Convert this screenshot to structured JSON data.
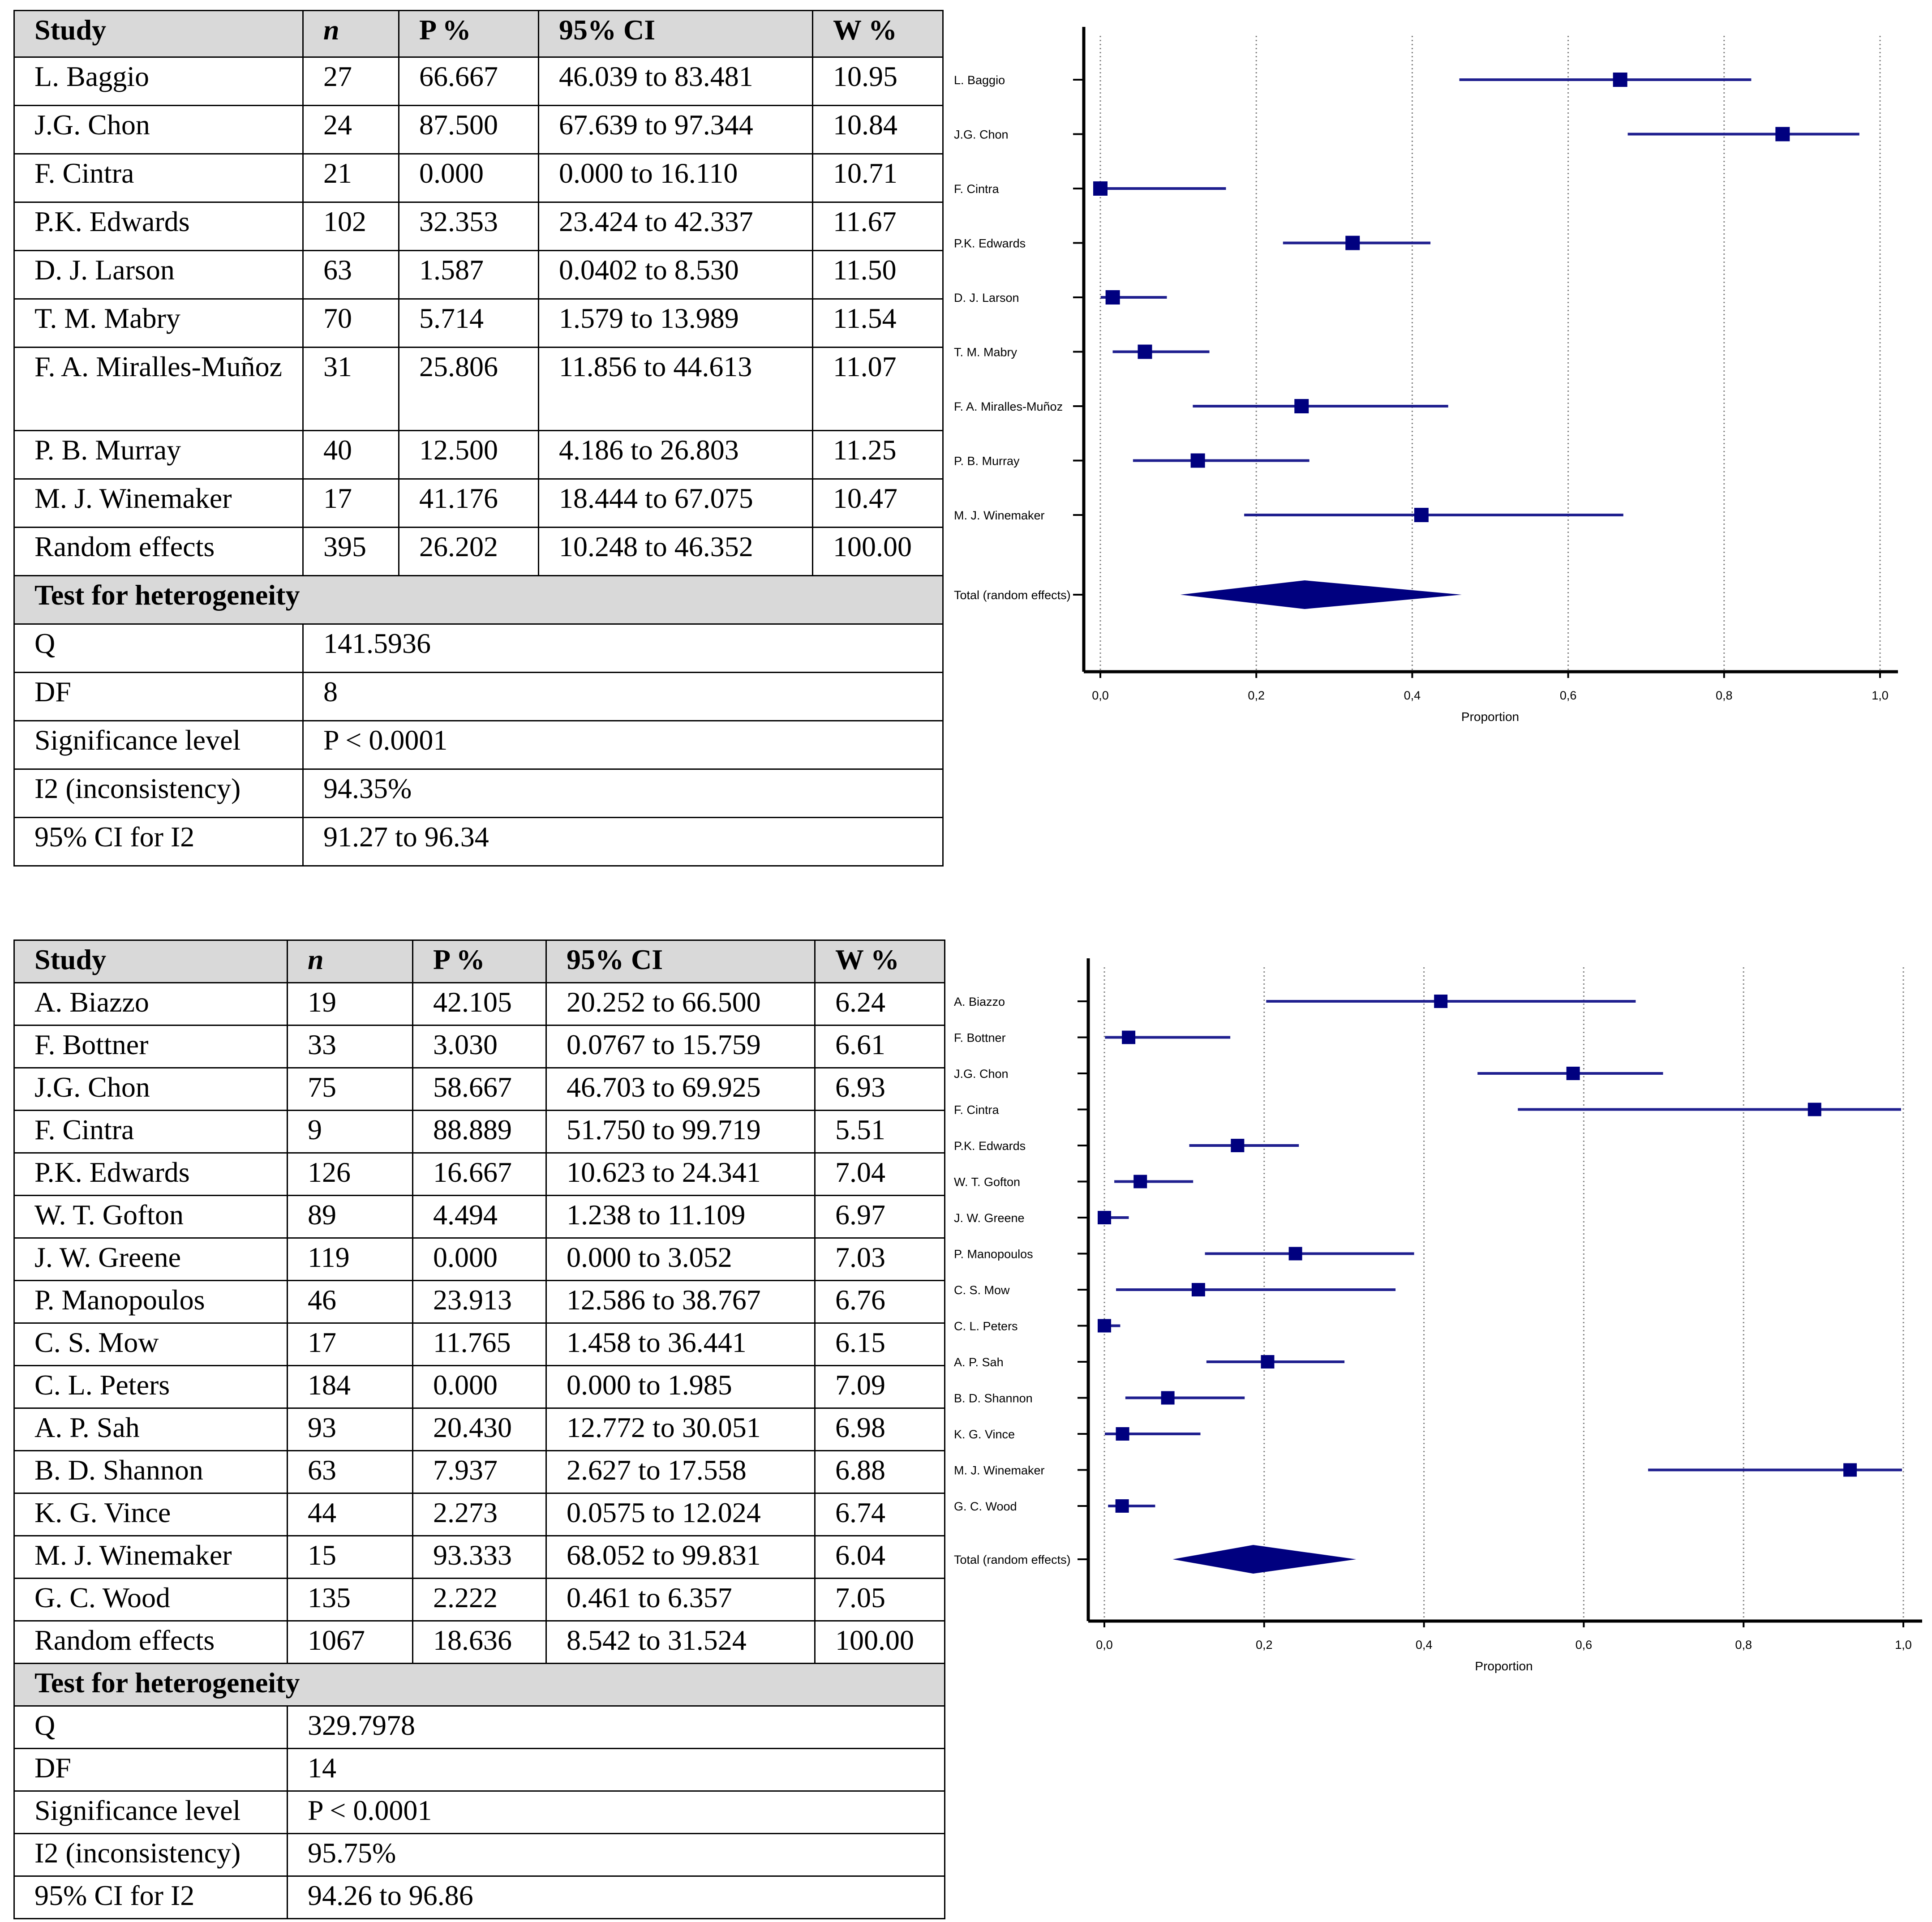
{
  "table1": {
    "headers": [
      "Study",
      "n",
      "P %",
      "95% CI",
      "W %"
    ],
    "rows": [
      [
        "L. Baggio",
        "27",
        "66.667",
        "46.039 to 83.481",
        "10.95"
      ],
      [
        "J.G. Chon",
        "24",
        "87.500",
        "67.639 to 97.344",
        "10.84"
      ],
      [
        "F. Cintra",
        "21",
        "0.000",
        "0.000 to 16.110",
        "10.71"
      ],
      [
        "P.K. Edwards",
        "102",
        "32.353",
        "23.424 to 42.337",
        "11.67"
      ],
      [
        "D. J. Larson",
        "63",
        "1.587",
        "0.0402 to 8.530",
        "11.50"
      ],
      [
        "T. M. Mabry",
        "70",
        "5.714",
        "1.579 to 13.989",
        "11.54"
      ],
      [
        "F. A. Miralles-Muñoz",
        "31",
        "25.806",
        "11.856 to 44.613",
        "11.07"
      ],
      [
        "P. B. Murray",
        "40",
        "12.500",
        "4.186 to 26.803",
        "11.25"
      ],
      [
        "M. J. Winemaker",
        "17",
        "41.176",
        "18.444 to 67.075",
        "10.47"
      ],
      [
        "Random effects",
        "395",
        "26.202",
        "10.248 to 46.352",
        "100.00"
      ]
    ],
    "heterogeneity_title": "Test for heterogeneity",
    "heterogeneity": [
      [
        "Q",
        "141.5936"
      ],
      [
        "DF",
        "8"
      ],
      [
        "Significance level",
        "P < 0.0001"
      ],
      [
        "I2 (inconsistency)",
        "94.35%"
      ],
      [
        "95% CI for I2",
        "91.27 to 96.34"
      ]
    ]
  },
  "table2": {
    "headers": [
      "Study",
      "n",
      "P %",
      "95% CI",
      "W %"
    ],
    "rows": [
      [
        "A. Biazzo",
        "19",
        "42.105",
        "20.252 to 66.500",
        "6.24"
      ],
      [
        "F. Bottner",
        "33",
        "3.030",
        "0.0767 to 15.759",
        "6.61"
      ],
      [
        "J.G. Chon",
        "75",
        "58.667",
        "46.703 to 69.925",
        "6.93"
      ],
      [
        "F. Cintra",
        "9",
        "88.889",
        "51.750 to 99.719",
        "5.51"
      ],
      [
        "P.K. Edwards",
        "126",
        "16.667",
        "10.623 to 24.341",
        "7.04"
      ],
      [
        "W. T. Gofton",
        "89",
        "4.494",
        "1.238 to 11.109",
        "6.97"
      ],
      [
        "J. W. Greene",
        "119",
        "0.000",
        "0.000 to 3.052",
        "7.03"
      ],
      [
        "P. Manopoulos",
        "46",
        "23.913",
        "12.586 to 38.767",
        "6.76"
      ],
      [
        "C. S. Mow",
        "17",
        "11.765",
        "1.458 to 36.441",
        "6.15"
      ],
      [
        "C. L. Peters",
        "184",
        "0.000",
        "0.000 to 1.985",
        "7.09"
      ],
      [
        "A. P. Sah",
        "93",
        "20.430",
        "12.772 to 30.051",
        "6.98"
      ],
      [
        "B. D. Shannon",
        "63",
        "7.937",
        "2.627 to 17.558",
        "6.88"
      ],
      [
        "K. G. Vince",
        "44",
        "2.273",
        "0.0575 to 12.024",
        "6.74"
      ],
      [
        "M. J. Winemaker",
        "15",
        "93.333",
        "68.052 to 99.831",
        "6.04"
      ],
      [
        "G. C. Wood",
        "135",
        "2.222",
        "0.461 to 6.357",
        "7.05"
      ],
      [
        "Random effects",
        "1067",
        "18.636",
        "8.542 to 31.524",
        "100.00"
      ]
    ],
    "heterogeneity_title": "Test for heterogeneity",
    "heterogeneity": [
      [
        "Q",
        "329.7978"
      ],
      [
        "DF",
        "14"
      ],
      [
        "Significance level",
        "P < 0.0001"
      ],
      [
        "I2 (inconsistency)",
        "95.75%"
      ],
      [
        "95% CI for I2",
        "94.26 to 96.86"
      ]
    ]
  },
  "colors": {
    "marker": "#00007f",
    "ci_line": "#1f1f8f",
    "grid": "#808080",
    "axis": "#000000"
  },
  "chart_data": [
    {
      "type": "forest",
      "xlabel": "Proportion",
      "xlim": [
        0,
        1
      ],
      "ticks": [
        "0,0",
        "0,2",
        "0,4",
        "0,6",
        "0,8",
        "1,0"
      ],
      "tick_values": [
        0,
        0.2,
        0.4,
        0.6,
        0.8,
        1.0
      ],
      "studies": [
        {
          "label": "L. Baggio",
          "p": 0.66667,
          "lo": 0.46039,
          "hi": 0.83481
        },
        {
          "label": "J.G. Chon",
          "p": 0.875,
          "lo": 0.67639,
          "hi": 0.97344
        },
        {
          "label": "F. Cintra",
          "p": 0.0,
          "lo": 0.0,
          "hi": 0.1611
        },
        {
          "label": "P.K. Edwards",
          "p": 0.32353,
          "lo": 0.23424,
          "hi": 0.42337
        },
        {
          "label": "D. J. Larson",
          "p": 0.01587,
          "lo": 0.000402,
          "hi": 0.0853
        },
        {
          "label": "T. M. Mabry",
          "p": 0.05714,
          "lo": 0.01579,
          "hi": 0.13989
        },
        {
          "label": "F. A. Miralles-Muñoz",
          "p": 0.25806,
          "lo": 0.11856,
          "hi": 0.44613
        },
        {
          "label": "P. B. Murray",
          "p": 0.125,
          "lo": 0.04186,
          "hi": 0.26803
        },
        {
          "label": "M. J. Winemaker",
          "p": 0.41176,
          "lo": 0.18444,
          "hi": 0.67075
        }
      ],
      "total": {
        "label": "Total (random effects)",
        "p": 0.26202,
        "lo": 0.10248,
        "hi": 0.46352
      }
    },
    {
      "type": "forest",
      "xlabel": "Proportion",
      "xlim": [
        0,
        1
      ],
      "ticks": [
        "0,0",
        "0,2",
        "0,4",
        "0,6",
        "0,8",
        "1,0"
      ],
      "tick_values": [
        0,
        0.2,
        0.4,
        0.6,
        0.8,
        1.0
      ],
      "studies": [
        {
          "label": "A. Biazzo",
          "p": 0.42105,
          "lo": 0.20252,
          "hi": 0.665
        },
        {
          "label": "F. Bottner",
          "p": 0.0303,
          "lo": 0.000767,
          "hi": 0.15759
        },
        {
          "label": "J.G. Chon",
          "p": 0.58667,
          "lo": 0.46703,
          "hi": 0.69925
        },
        {
          "label": "F. Cintra",
          "p": 0.88889,
          "lo": 0.5175,
          "hi": 0.99719
        },
        {
          "label": "P.K. Edwards",
          "p": 0.16667,
          "lo": 0.10623,
          "hi": 0.24341
        },
        {
          "label": "W. T. Gofton",
          "p": 0.04494,
          "lo": 0.01238,
          "hi": 0.11109
        },
        {
          "label": "J. W. Greene",
          "p": 0.0,
          "lo": 0.0,
          "hi": 0.03052
        },
        {
          "label": "P. Manopoulos",
          "p": 0.23913,
          "lo": 0.12586,
          "hi": 0.38767
        },
        {
          "label": "C. S. Mow",
          "p": 0.11765,
          "lo": 0.01458,
          "hi": 0.36441
        },
        {
          "label": "C. L. Peters",
          "p": 0.0,
          "lo": 0.0,
          "hi": 0.01985
        },
        {
          "label": "A. P. Sah",
          "p": 0.2043,
          "lo": 0.12772,
          "hi": 0.30051
        },
        {
          "label": "B. D. Shannon",
          "p": 0.07937,
          "lo": 0.02627,
          "hi": 0.17558
        },
        {
          "label": "K. G. Vince",
          "p": 0.02273,
          "lo": 0.000575,
          "hi": 0.12024
        },
        {
          "label": "M. J. Winemaker",
          "p": 0.93333,
          "lo": 0.68052,
          "hi": 0.99831
        },
        {
          "label": "G. C. Wood",
          "p": 0.02222,
          "lo": 0.00461,
          "hi": 0.06357
        }
      ],
      "total": {
        "label": "Total (random effects)",
        "p": 0.18636,
        "lo": 0.08542,
        "hi": 0.31524
      }
    }
  ]
}
